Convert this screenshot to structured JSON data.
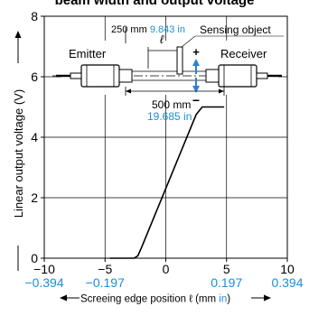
{
  "chart_data": {
    "type": "line",
    "title": "beam width and output voltage",
    "ylabel": "Linear output voltage (V)",
    "xlabel_parts": [
      "Screeing edge position ℓ (mm ",
      "in",
      ")"
    ],
    "xlim": [
      -10,
      10
    ],
    "ylim": [
      0,
      8
    ],
    "grid": true,
    "x_ticks": [
      {
        "mm": "−10",
        "in": "−0.394"
      },
      {
        "mm": "−5",
        "in": "−0.197"
      },
      {
        "mm": "0",
        "in": ""
      },
      {
        "mm": "5",
        "in": "0.197"
      },
      {
        "mm": "10",
        "in": "0.394"
      }
    ],
    "y_ticks": [
      "0",
      "2",
      "4",
      "6",
      "8"
    ],
    "series": [
      {
        "values_x": [
          -4.6,
          -2.6,
          -2.3,
          -2.0,
          2.5,
          3.0,
          3.4,
          4.8
        ],
        "values_y": [
          0.0,
          0.0,
          0.08,
          0.35,
          4.75,
          5.0,
          5.0,
          5.0
        ]
      }
    ],
    "colors": {
      "line": "#000000",
      "inch_text": "#1a8fd8",
      "arrow": "#2f7fd0"
    }
  },
  "diagram": {
    "emitter_label": "Emitter",
    "receiver_label": "Receiver",
    "sensing_object_label": "Sensing object",
    "ell_symbol": "ℓ",
    "plus_sign": "+",
    "minus_sign": "−",
    "dim_top_mm": "250 mm",
    "dim_top_in": "9.843 in",
    "dim_bottom_mm": "500 mm",
    "dim_bottom_in": "19.685 in"
  }
}
